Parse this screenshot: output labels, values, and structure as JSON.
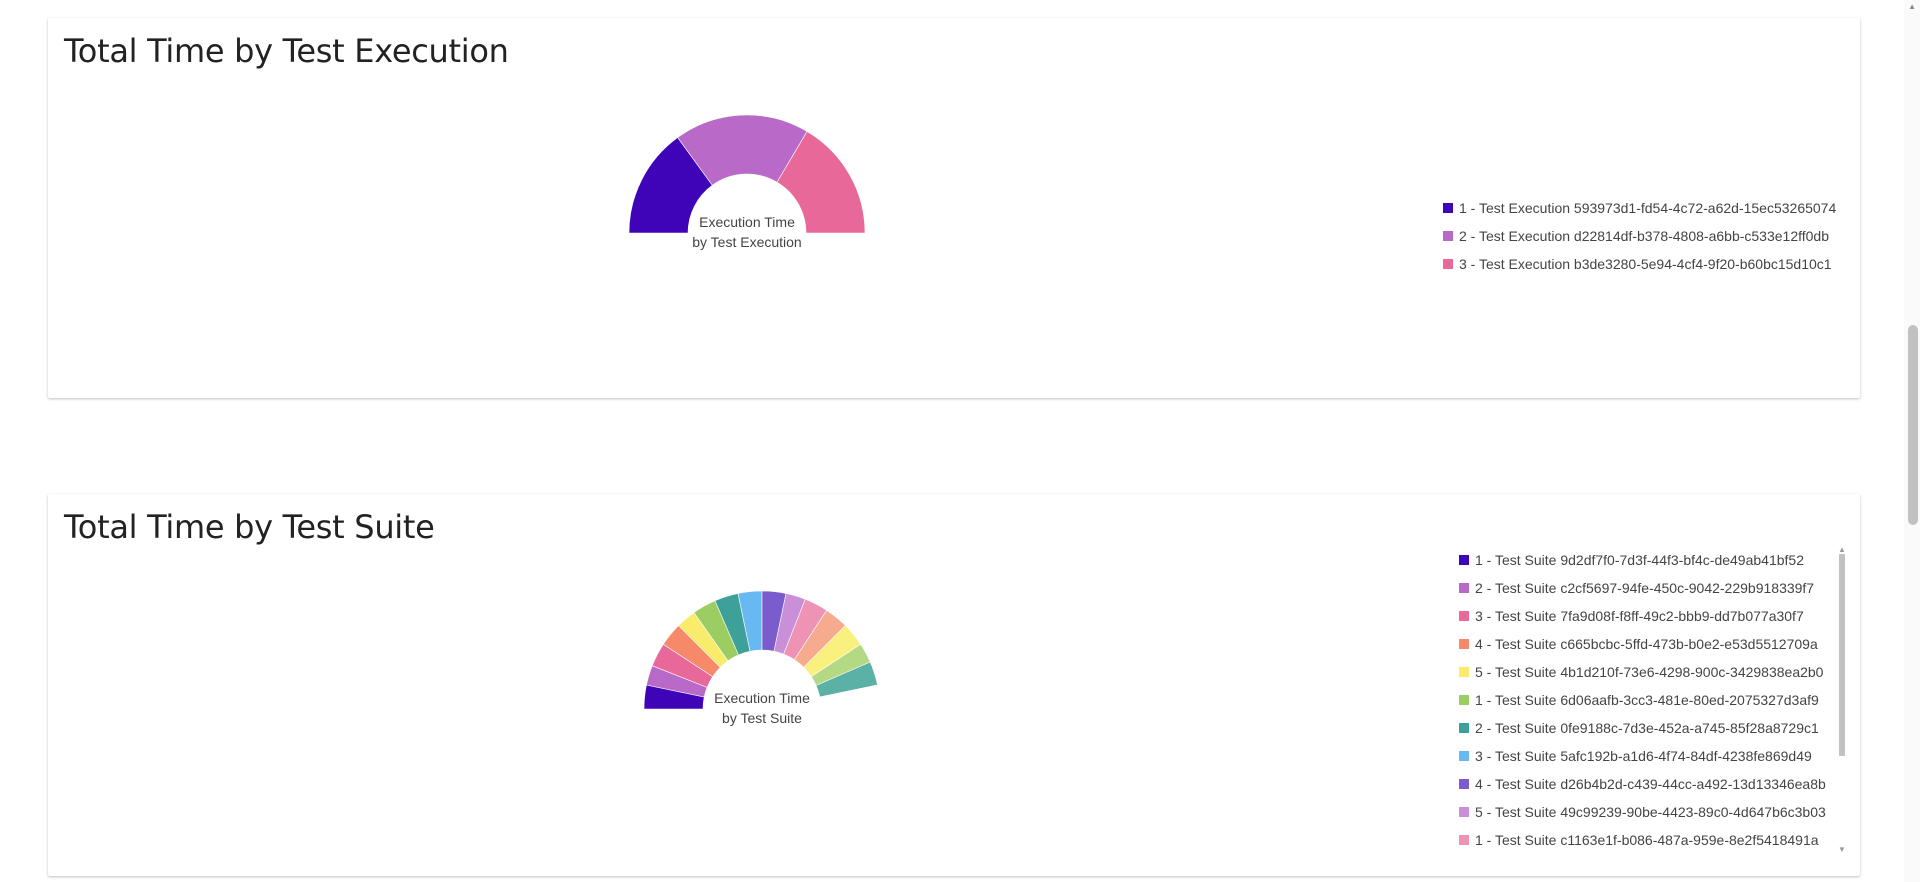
{
  "charts": [
    {
      "id": "exec",
      "card_title": "Total Time by Test Execution",
      "center_label": [
        "Execution Time",
        "by Test Execution"
      ],
      "legend": [
        {
          "label": "1 - Test Execution 593973d1-fd54-4c72-a62d-15ec53265074",
          "color": "#3f04b7"
        },
        {
          "label": "2 - Test Execution d22814df-b378-4808-a6bb-c533e12ff0db",
          "color": "#b96ac9"
        },
        {
          "label": "3 - Test Execution b3de3280-5e94-4cf4-9f20-b60bc15d10c1",
          "color": "#e8689a"
        }
      ]
    },
    {
      "id": "suite",
      "card_title": "Total Time by Test Suite",
      "center_label": [
        "Execution Time",
        "by Test Suite"
      ],
      "legend": [
        {
          "label": "1 - Test Suite 9d2df7f0-7d3f-44f3-bf4c-de49ab41bf52",
          "color": "#3f04b7"
        },
        {
          "label": "2 - Test Suite c2cf5697-94fe-450c-9042-229b918339f7",
          "color": "#b96ac9"
        },
        {
          "label": "3 - Test Suite 7fa9d08f-f8ff-49c2-bbb9-dd7b077a30f7",
          "color": "#e8689a"
        },
        {
          "label": "4 - Test Suite c665bcbc-5ffd-473b-b0e2-e53d5512709a",
          "color": "#f5896a"
        },
        {
          "label": "5 - Test Suite 4b1d210f-73e6-4298-900c-3429838ea2b0",
          "color": "#f8ec6a"
        },
        {
          "label": "1 - Test Suite 6d06aafb-3cc3-481e-80ed-2075327d3af9",
          "color": "#9ccd63"
        },
        {
          "label": "2 - Test Suite 0fe9188c-7d3e-452a-a745-85f28a8729c1",
          "color": "#3da19a"
        },
        {
          "label": "3 - Test Suite 5afc192b-a1d6-4f74-84df-4238fe869d49",
          "color": "#68b8f2"
        },
        {
          "label": "4 - Test Suite d26b4b2d-c439-44cc-a492-13d13346ea8b",
          "color": "#7b5ccc"
        },
        {
          "label": "5 - Test Suite 49c99239-90be-4423-89c0-4d647b6c3b03",
          "color": "#c98fd8"
        },
        {
          "label": "1 - Test Suite c1163e1f-b086-487a-959e-8e2f5418491a",
          "color": "#ee93b4"
        }
      ]
    }
  ],
  "chart_data": [
    {
      "type": "pie",
      "variant": "semicircle-donut",
      "title": "Total Time by Test Execution",
      "categories": [
        "1 - Test Execution 593973d1-fd54-4c72-a62d-15ec53265074",
        "2 - Test Execution d22814df-b378-4808-a6bb-c533e12ff0db",
        "3 - Test Execution b3de3280-5e94-4cf4-9f20-b60bc15d10c1"
      ],
      "values": [
        30,
        37,
        33
      ],
      "colors": [
        "#3f04b7",
        "#b96ac9",
        "#e8689a"
      ],
      "legend": "right"
    },
    {
      "type": "pie",
      "variant": "semicircle-donut",
      "title": "Total Time by Test Suite",
      "values": [
        6,
        5,
        6,
        6,
        5,
        6,
        6,
        6,
        6,
        5,
        6,
        6,
        6,
        5,
        6,
        6
      ],
      "colors": [
        "#3f04b7",
        "#b96ac9",
        "#e8689a",
        "#f5896a",
        "#f8ec6a",
        "#9ccd63",
        "#3da19a",
        "#68b8f2",
        "#7b5ccc",
        "#c98fd8",
        "#ee93b4",
        "#f7ab8e",
        "#faf07e",
        "#b3d984",
        "#5bb1a6",
        "#ffffff"
      ],
      "legend": "right"
    }
  ]
}
